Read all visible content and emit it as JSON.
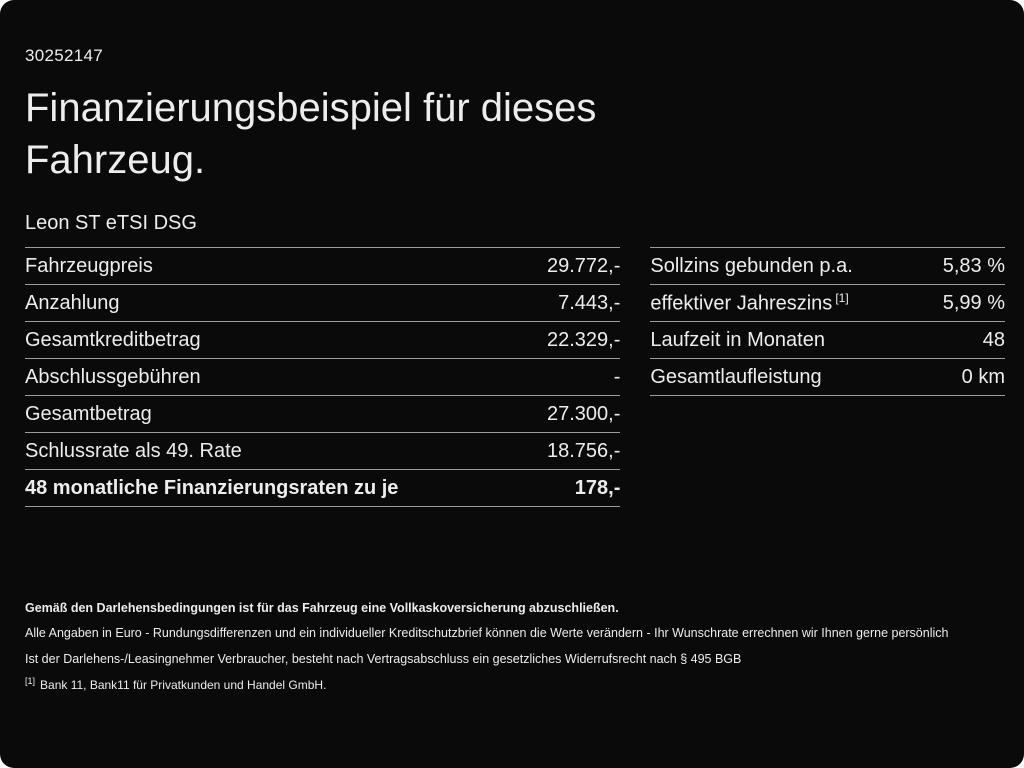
{
  "header": {
    "id_number": "30252147",
    "title_line1": "Finanzierungsbeispiel für dieses",
    "title_line2": "Fahrzeug.",
    "vehicle_model": "Leon ST eTSI DSG"
  },
  "left_table": {
    "rows": [
      {
        "label": "Fahrzeugpreis",
        "value": "29.772,-"
      },
      {
        "label": "Anzahlung",
        "value": "7.443,-"
      },
      {
        "label": "Gesamtkreditbetrag",
        "value": "22.329,-"
      },
      {
        "label": "Abschlussgebühren",
        "value": "-"
      },
      {
        "label": "Gesamtbetrag",
        "value": "27.300,-"
      },
      {
        "label": "Schlussrate als 49. Rate",
        "value": "18.756,-"
      },
      {
        "label": "48 monatliche Finanzierungsraten zu je",
        "value": "178,-"
      }
    ]
  },
  "right_table": {
    "rows": [
      {
        "label": "Sollzins gebunden p.a.",
        "value": "5,83 %"
      },
      {
        "label": "effektiver Jahreszins",
        "sup": "[1]",
        "value": "5,99 %"
      },
      {
        "label": "Laufzeit in Monaten",
        "value": "48"
      },
      {
        "label": "Gesamtlaufleistung",
        "value": "0 km"
      }
    ]
  },
  "footer": {
    "insurance_note": "Gemäß den Darlehensbedingungen ist für das Fahrzeug eine Vollkaskoversicherung abzuschließen.",
    "disclaimer_line1": "Alle Angaben in Euro - Rundungsdifferenzen und ein individueller Kreditschutzbrief können die Werte verändern - Ihr Wunschrate errechnen wir Ihnen gerne persönlich",
    "disclaimer_line2": "Ist der Darlehens-/Leasingnehmer Verbraucher, besteht nach Vertragsabschluss ein gesetzliches Widerrufsrecht nach § 495 BGB",
    "footnote_marker": "[1]",
    "footnote_text": "Bank 11, Bank11 für Privatkunden und Handel GmbH."
  },
  "colors": {
    "background": "#0a0a0a",
    "text": "#ededed",
    "divider": "#9c9c9c"
  }
}
